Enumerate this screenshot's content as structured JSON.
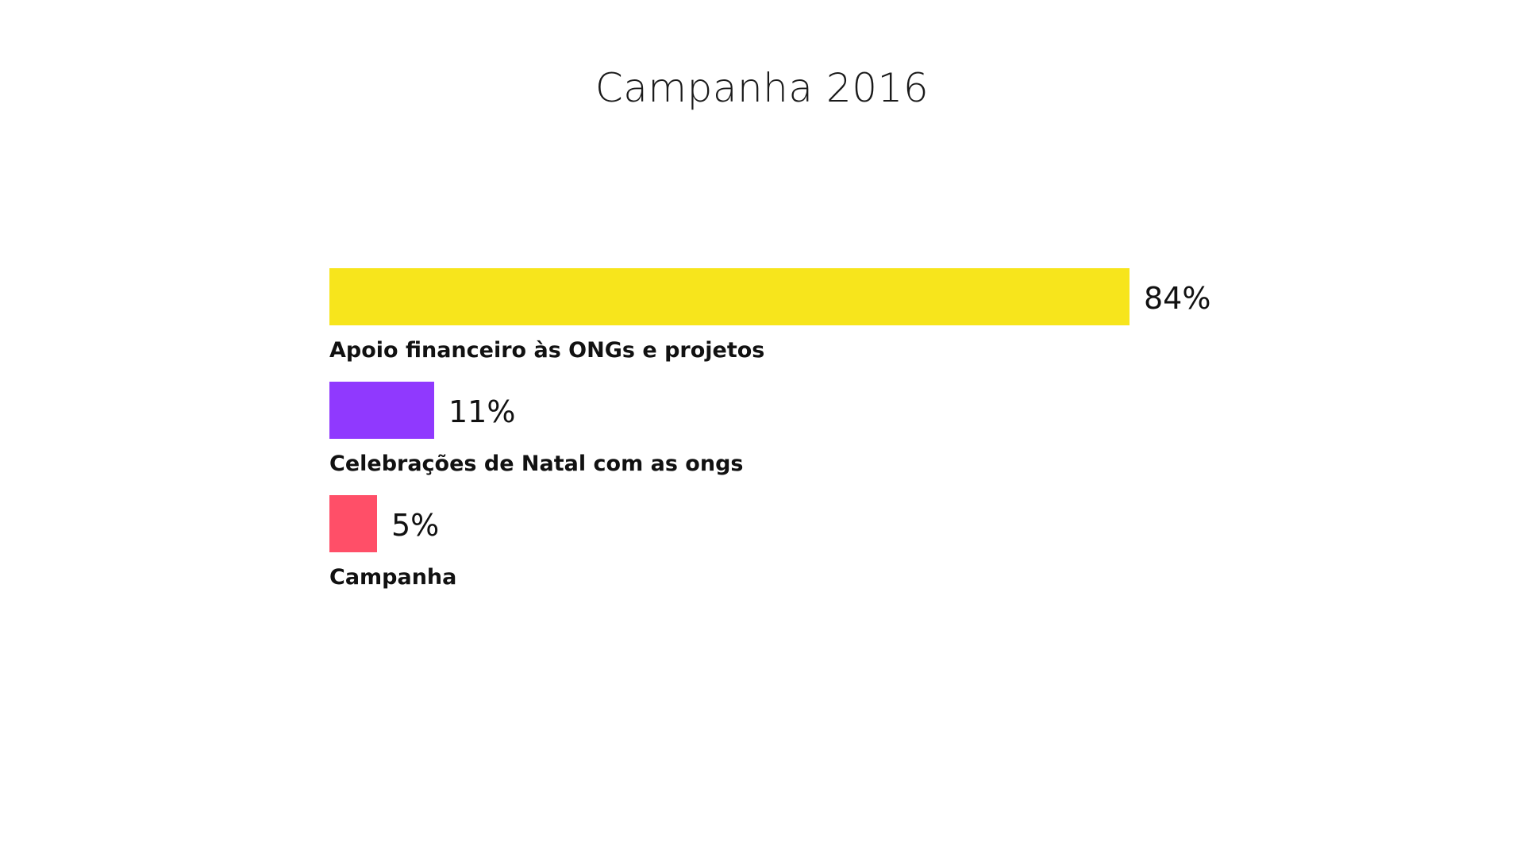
{
  "chart_data": {
    "type": "bar",
    "orientation": "horizontal",
    "title": "Campanha 2016",
    "categories": [
      "Apoio financeiro às ONGs e projetos",
      "Celebrações de Natal com as ongs",
      "Campanha"
    ],
    "values": [
      84,
      11,
      5
    ],
    "value_labels": [
      "84%",
      "11%",
      "5%"
    ],
    "colors": [
      "#f7e51c",
      "#9039fe",
      "#ff4f68"
    ],
    "unit": "%",
    "xlim": [
      0,
      100
    ],
    "grid": false,
    "legend": "none"
  }
}
